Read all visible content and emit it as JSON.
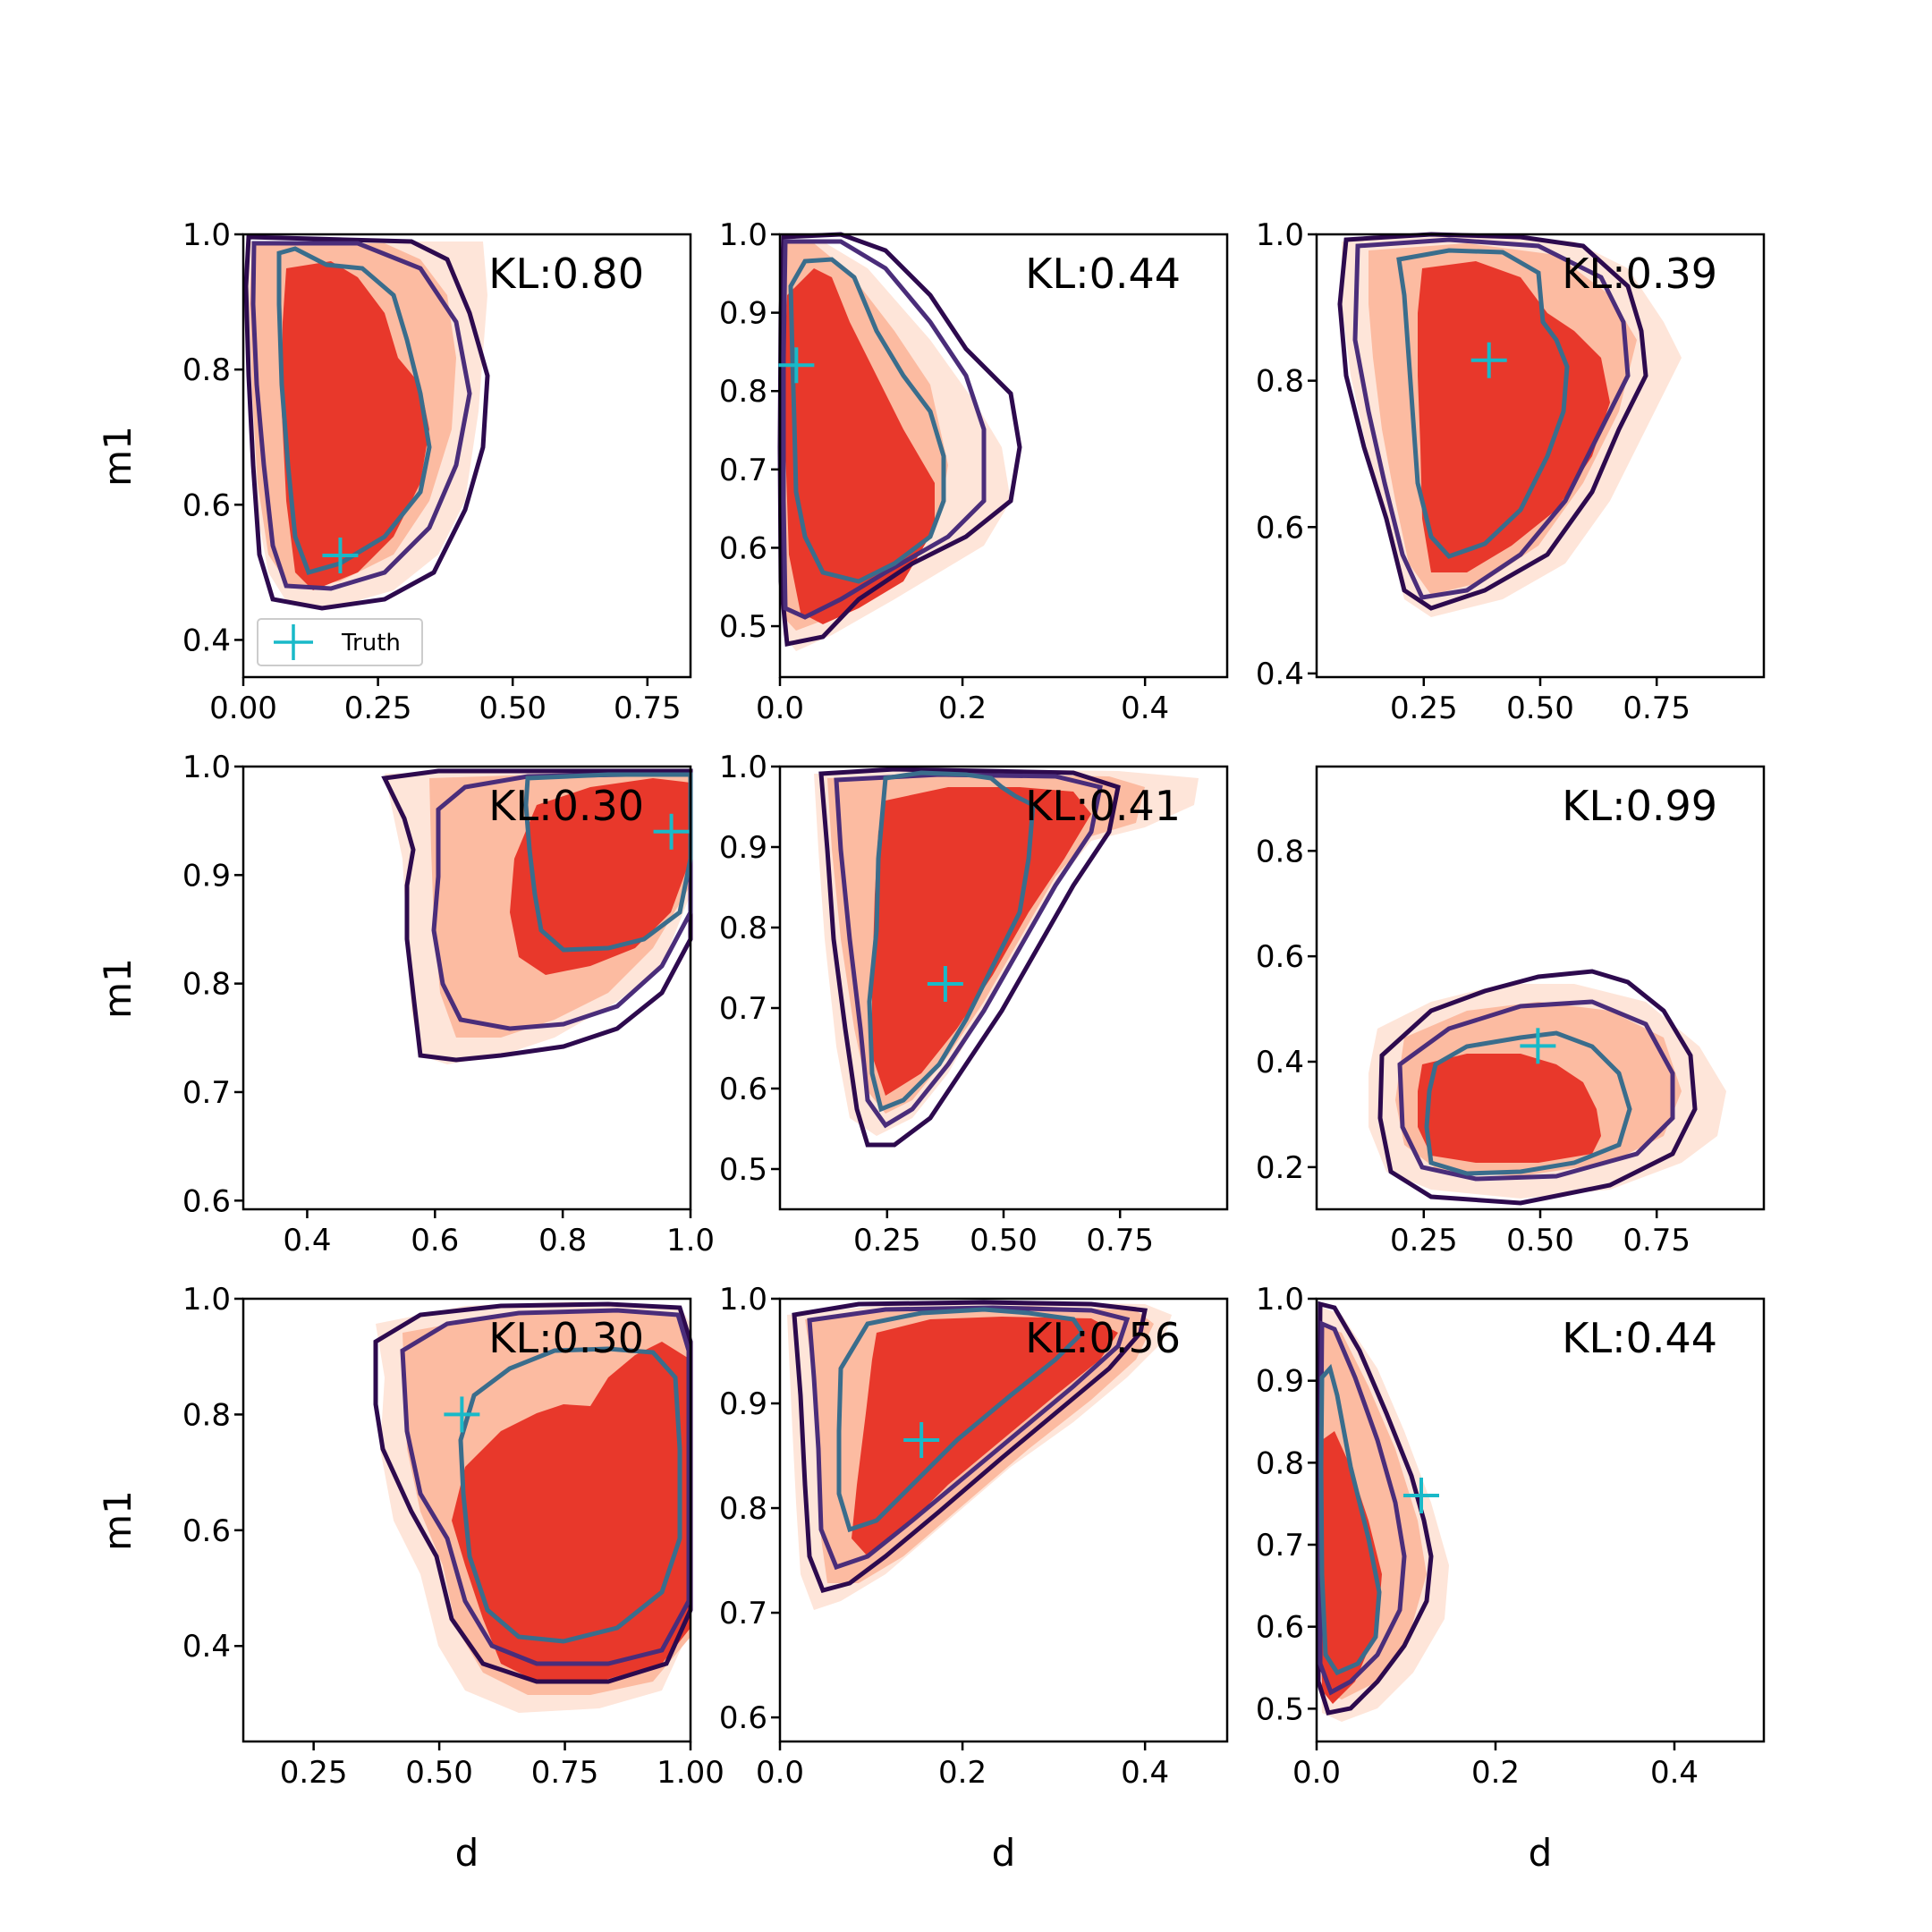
{
  "chart_data": {
    "type": "contour",
    "grid": {
      "rows": 3,
      "cols": 3
    },
    "xlabel": "d",
    "ylabel": "m1",
    "legend": {
      "label": "Truth",
      "panel": 0,
      "location": "lower-left"
    },
    "colors": {
      "fill_levels": [
        "#fee5d9",
        "#fcbba1",
        "#e8382b"
      ],
      "contour_inner": "#3a6d8c",
      "contour_mid": "#4a2d7a",
      "contour_outer": "#2d0a4e",
      "truth": "#19b9c8"
    },
    "panels": [
      {
        "kl_label": "KL:0.80",
        "truth": [
          0.18,
          0.525
        ],
        "xlim": [
          0,
          0.83
        ],
        "ylim": [
          0.345,
          1.0
        ],
        "xticks": [
          "0.00",
          "0.25",
          "0.50",
          "0.75"
        ],
        "xtick_values": [
          0,
          0.25,
          0.5,
          0.75
        ],
        "yticks": [
          "0.4",
          "0.6",
          "0.8",
          "1.0"
        ],
        "ytick_values": [
          0.4,
          0.6,
          0.8,
          1.0
        ]
      },
      {
        "kl_label": "KL:0.44",
        "truth": [
          0.018,
          0.833
        ],
        "xlim": [
          0,
          0.49
        ],
        "ylim": [
          0.435,
          1.0
        ],
        "xticks": [
          "0.0",
          "0.2",
          "0.4"
        ],
        "xtick_values": [
          0,
          0.2,
          0.4
        ],
        "yticks": [
          "0.5",
          "0.6",
          "0.7",
          "0.8",
          "0.9",
          "1.0"
        ],
        "ytick_values": [
          0.5,
          0.6,
          0.7,
          0.8,
          0.9,
          1.0
        ]
      },
      {
        "kl_label": "KL:0.39",
        "truth": [
          0.39,
          0.828
        ],
        "xlim": [
          0.02,
          0.98
        ],
        "ylim": [
          0.395,
          1.0
        ],
        "xticks": [
          "0.25",
          "0.50",
          "0.75"
        ],
        "xtick_values": [
          0.25,
          0.5,
          0.75
        ],
        "yticks": [
          "0.4",
          "0.6",
          "0.8",
          "1.0"
        ],
        "ytick_values": [
          0.4,
          0.6,
          0.8,
          1.0
        ]
      },
      {
        "kl_label": "KL:0.30",
        "truth": [
          0.97,
          0.94
        ],
        "xlim": [
          0.3,
          1.0
        ],
        "ylim": [
          0.592,
          1.0
        ],
        "xticks": [
          "0.4",
          "0.6",
          "0.8",
          "1.0"
        ],
        "xtick_values": [
          0.4,
          0.6,
          0.8,
          1.0
        ],
        "yticks": [
          "0.6",
          "0.7",
          "0.8",
          "0.9",
          "1.0"
        ],
        "ytick_values": [
          0.6,
          0.7,
          0.8,
          0.9,
          1.0
        ]
      },
      {
        "kl_label": "KL:0.41",
        "truth": [
          0.375,
          0.73
        ],
        "xlim": [
          0.02,
          0.98
        ],
        "ylim": [
          0.45,
          1.0
        ],
        "xticks": [
          "0.25",
          "0.50",
          "0.75"
        ],
        "xtick_values": [
          0.25,
          0.5,
          0.75
        ],
        "yticks": [
          "0.5",
          "0.6",
          "0.7",
          "0.8",
          "0.9",
          "1.0"
        ],
        "ytick_values": [
          0.5,
          0.6,
          0.7,
          0.8,
          0.9,
          1.0
        ]
      },
      {
        "kl_label": "KL:0.99",
        "truth": [
          0.495,
          0.43
        ],
        "xlim": [
          0.02,
          0.98
        ],
        "ylim": [
          0.12,
          0.96
        ],
        "xticks": [
          "0.25",
          "0.50",
          "0.75"
        ],
        "xtick_values": [
          0.25,
          0.5,
          0.75
        ],
        "yticks": [
          "0.2",
          "0.4",
          "0.6",
          "0.8"
        ],
        "ytick_values": [
          0.2,
          0.4,
          0.6,
          0.8
        ]
      },
      {
        "kl_label": "KL:0.30",
        "truth": [
          0.545,
          0.8
        ],
        "xlim": [
          0.11,
          1.0
        ],
        "ylim": [
          0.235,
          1.0
        ],
        "xticks": [
          "0.25",
          "0.50",
          "0.75",
          "1.00"
        ],
        "xtick_values": [
          0.25,
          0.5,
          0.75,
          1.0
        ],
        "yticks": [
          "0.4",
          "0.6",
          "0.8",
          "1.0"
        ],
        "ytick_values": [
          0.4,
          0.6,
          0.8,
          1.0
        ]
      },
      {
        "kl_label": "KL:0.56",
        "truth": [
          0.155,
          0.865
        ],
        "xlim": [
          0,
          0.49
        ],
        "ylim": [
          0.577,
          1.0
        ],
        "xticks": [
          "0.0",
          "0.2",
          "0.4"
        ],
        "xtick_values": [
          0,
          0.2,
          0.4
        ],
        "yticks": [
          "0.6",
          "0.7",
          "0.8",
          "0.9",
          "1.0"
        ],
        "ytick_values": [
          0.6,
          0.7,
          0.8,
          0.9,
          1.0
        ]
      },
      {
        "kl_label": "KL:0.44",
        "truth": [
          0.117,
          0.76
        ],
        "xlim": [
          0,
          0.5
        ],
        "ylim": [
          0.46,
          1.0
        ],
        "xticks": [
          "0.0",
          "0.2",
          "0.4"
        ],
        "xtick_values": [
          0,
          0.2,
          0.4
        ],
        "yticks": [
          "0.5",
          "0.6",
          "0.7",
          "0.8",
          "0.9",
          "1.0"
        ],
        "ytick_values": [
          0.5,
          0.6,
          0.7,
          0.8,
          0.9,
          1.0
        ]
      }
    ]
  }
}
